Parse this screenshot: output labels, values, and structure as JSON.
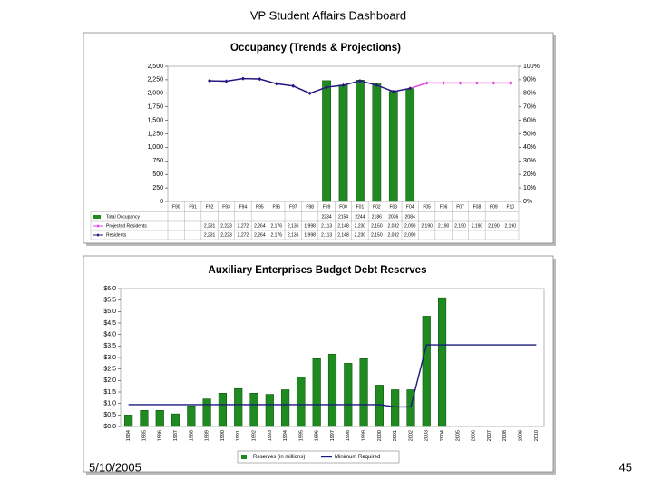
{
  "slide": {
    "title": "VP Student Affairs Dashboard",
    "date": "5/10/2005",
    "page": "45"
  },
  "chart_data": [
    {
      "type": "combo",
      "title": "Occupancy (Trends & Projections)",
      "categories": [
        "F90",
        "F91",
        "F92",
        "F93",
        "F94",
        "F95",
        "F96",
        "F97",
        "F98",
        "F99",
        "F00",
        "F01",
        "F02",
        "F03",
        "F04",
        "F05",
        "F06",
        "F07",
        "F08",
        "F09",
        "F10"
      ],
      "series": [
        {
          "name": "Total Occupancy",
          "type": "bar",
          "color": "#1f8a1f",
          "values": [
            null,
            null,
            null,
            null,
            null,
            null,
            null,
            null,
            null,
            2234,
            2154,
            2244,
            2186,
            2036,
            2084,
            null,
            null,
            null,
            null,
            null,
            null
          ]
        },
        {
          "name": "Projected Residents",
          "type": "line",
          "color": "#e040e0",
          "values": [
            null,
            null,
            2231,
            2223,
            2272,
            2264,
            2176,
            2136,
            1998,
            2113,
            2148,
            2230,
            2150,
            2032,
            2090,
            2190,
            2190,
            2190,
            2190,
            2190,
            2190
          ],
          "value_labels": [
            null,
            null,
            "2,231",
            "2,223",
            "2,272",
            "2,264",
            "2,176",
            "2,136",
            "1,998",
            "2,113",
            "2,148",
            "2,230",
            "2,150",
            "2,032",
            "2,090",
            "2,190",
            "2,190",
            "2,190",
            "2,190",
            "2,190",
            "2,190"
          ]
        },
        {
          "name": "Residents",
          "type": "line",
          "color": "#1a1a7a",
          "values": [
            null,
            null,
            2231,
            2223,
            2272,
            2264,
            2176,
            2136,
            1998,
            2113,
            2148,
            2230,
            2150,
            2032,
            2090,
            null,
            null,
            null,
            null,
            null,
            null
          ],
          "value_labels": [
            null,
            null,
            "2,231",
            "2,223",
            "2,272",
            "2,264",
            "2,176",
            "2,136",
            "1,998",
            "2,113",
            "2,148",
            "2,230",
            "2,150",
            "2,032",
            "2,090",
            null,
            null,
            null,
            null,
            null,
            null
          ]
        }
      ],
      "ylim": [
        0,
        2500
      ],
      "yticks": [
        0,
        250,
        500,
        750,
        {
          "value": 1000,
          "label": "1,000"
        },
        {
          "value": 1250,
          "label": "1,250"
        },
        {
          "value": 1500,
          "label": "1,500"
        },
        {
          "value": 1750,
          "label": "1,750"
        },
        {
          "value": 2000,
          "label": "2,000"
        },
        {
          "value": 2250,
          "label": "2,250"
        },
        {
          "value": 2500,
          "label": "2,500"
        }
      ],
      "y2lim": [
        0,
        100
      ],
      "y2ticks": [
        {
          "value": 0,
          "label": "0%"
        },
        {
          "value": 10,
          "label": "10%"
        },
        {
          "value": 20,
          "label": "20%"
        },
        {
          "value": 30,
          "label": "30%"
        },
        {
          "value": 40,
          "label": "40%"
        },
        {
          "value": 50,
          "label": "50%"
        },
        {
          "value": 60,
          "label": "60%"
        },
        {
          "value": 70,
          "label": "70%"
        },
        {
          "value": 80,
          "label": "80%"
        },
        {
          "value": 90,
          "label": "90%"
        },
        {
          "value": 100,
          "label": "100%"
        }
      ],
      "data_table": true
    },
    {
      "type": "combo",
      "title": "Auxiliary Enterprises Budget Debt Reserves",
      "categories": [
        "1984",
        "1985",
        "1986",
        "1987",
        "1988",
        "1989",
        "1990",
        "1991",
        "1992",
        "1993",
        "1994",
        "1995",
        "1996",
        "1997",
        "1998",
        "1999",
        "2000",
        "2001",
        "2002",
        "2003",
        "2004",
        "2005",
        "2006",
        "2007",
        "2008",
        "2009",
        "2010"
      ],
      "series": [
        {
          "name": "Reserves (in millions)",
          "type": "bar",
          "color": "#1f8a1f",
          "values": [
            0.5,
            0.7,
            0.7,
            0.55,
            0.9,
            1.2,
            1.45,
            1.65,
            1.45,
            1.4,
            1.6,
            2.15,
            2.95,
            3.15,
            2.75,
            2.95,
            1.8,
            1.6,
            1.6,
            4.8,
            5.6,
            null,
            null,
            null,
            null,
            null,
            null
          ]
        },
        {
          "name": "Minimum Required",
          "type": "line",
          "color": "#1a1a7a",
          "values": [
            0.95,
            0.95,
            0.95,
            0.95,
            0.95,
            0.95,
            0.95,
            0.95,
            0.95,
            0.95,
            0.95,
            0.95,
            0.95,
            0.95,
            0.95,
            0.95,
            0.95,
            0.85,
            0.85,
            3.55,
            3.55,
            3.55,
            3.55,
            3.55,
            3.55,
            3.55,
            3.55
          ]
        }
      ],
      "ylim": [
        0,
        6
      ],
      "yticks": [
        {
          "value": 0,
          "label": "$0.0"
        },
        {
          "value": 0.5,
          "label": "$0.5"
        },
        {
          "value": 1,
          "label": "$1.0"
        },
        {
          "value": 1.5,
          "label": "$1.5"
        },
        {
          "value": 2,
          "label": "$2.0"
        },
        {
          "value": 2.5,
          "label": "$2.5"
        },
        {
          "value": 3,
          "label": "$3.0"
        },
        {
          "value": 3.5,
          "label": "$3.5"
        },
        {
          "value": 4,
          "label": "$4.0"
        },
        {
          "value": 4.5,
          "label": "$4.5"
        },
        {
          "value": 5,
          "label": "$5.0"
        },
        {
          "value": 5.5,
          "label": "$5.5"
        },
        {
          "value": 6,
          "label": "$6.0"
        }
      ],
      "legend": "bottom"
    }
  ]
}
